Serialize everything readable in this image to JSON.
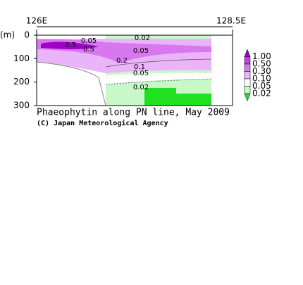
{
  "chart_data": {
    "type": "contour",
    "title": "Phaeophytin along PN line, May 2009",
    "credit": "(C) Japan Meteorological Agency",
    "y_label": "(m)",
    "x_labels": [
      "126E",
      "128.5E"
    ],
    "ylim": [
      0,
      300
    ],
    "yticks": [
      0,
      100,
      200,
      300
    ],
    "annotations": [
      "0.5",
      "0.5",
      "0.05",
      "0.02",
      "0.05",
      "0.2",
      "0.1",
      "0.05",
      "0.02"
    ],
    "legend": {
      "levels": [
        {
          "value": 1,
          "label": "1.00"
        },
        {
          "value": 0.5,
          "label": "0.50"
        },
        {
          "value": 0.3,
          "label": "0.30"
        },
        {
          "value": 0.1,
          "label": "0.10"
        },
        {
          "value": 0.05,
          "label": "0.05"
        },
        {
          "value": 0.02,
          "label": "0.02"
        }
      ],
      "colors": [
        "#a000c8",
        "#c040e0",
        "#d878f0",
        "#eab4f8",
        "#ffffff",
        "#c8f8c8",
        "#20e020"
      ]
    }
  }
}
